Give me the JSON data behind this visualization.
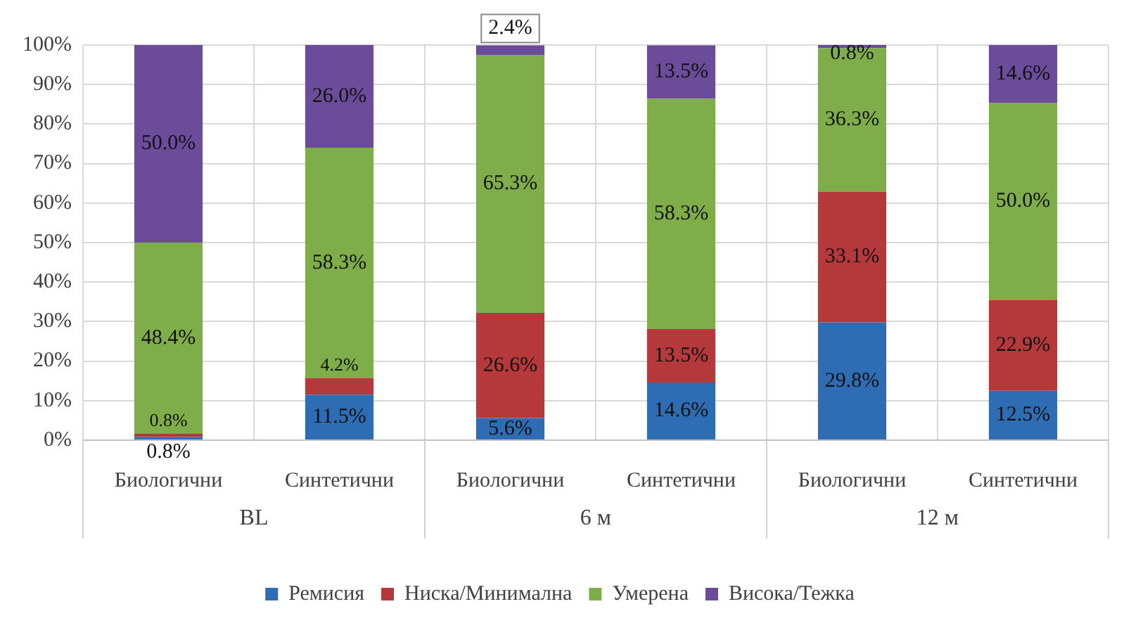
{
  "chart_data": {
    "type": "bar",
    "stacked": true,
    "categories": [
      "Биологични",
      "Синтетични",
      "Биологични",
      "Синтетични",
      "Биологични",
      "Синтетични"
    ],
    "annotations": [
      "BL",
      "6 м",
      "12 м"
    ],
    "series": [
      {
        "name": "Ремисия",
        "color": "#2e6db4",
        "values": [
          0.8,
          11.5,
          5.6,
          14.6,
          29.8,
          12.5
        ],
        "value_labels": [
          "0.8%",
          "11.5%",
          "5.6%",
          "14.6%",
          "29.8%",
          "12.5%"
        ]
      },
      {
        "name": "Ниска/Минимална",
        "color": "#b5393b",
        "values": [
          0.8,
          4.2,
          26.6,
          13.5,
          33.1,
          22.9
        ],
        "value_labels": [
          "0.8%",
          "4.2%",
          "26.6%",
          "13.5%",
          "33.1%",
          "22.9%"
        ]
      },
      {
        "name": "Умерена",
        "color": "#7fad4a",
        "values": [
          48.4,
          58.3,
          65.3,
          58.3,
          36.3,
          50.0
        ],
        "value_labels": [
          "48.4%",
          "58.3%",
          "65.3%",
          "58.3%",
          "36.3%",
          "50.0%"
        ]
      },
      {
        "name": "Висока/Тежка",
        "color": "#6b4c9a",
        "values": [
          50.0,
          26.0,
          2.4,
          13.5,
          0.8,
          14.6
        ],
        "value_labels": [
          "50.0%",
          "26.0%",
          "2.4%",
          "13.5%",
          "0.8%",
          "14.6%"
        ]
      }
    ],
    "ylim": [
      0,
      100
    ],
    "yticks": [
      {
        "value": 0,
        "label": "0%"
      },
      {
        "value": 10,
        "label": "10%"
      },
      {
        "value": 20,
        "label": "20%"
      },
      {
        "value": 30,
        "label": "30%"
      },
      {
        "value": 40,
        "label": "40%"
      },
      {
        "value": 50,
        "label": "50%"
      },
      {
        "value": 60,
        "label": "60%"
      },
      {
        "value": 70,
        "label": "70%"
      },
      {
        "value": 80,
        "label": "80%"
      },
      {
        "value": 90,
        "label": "90%"
      },
      {
        "value": 100,
        "label": "100%"
      }
    ],
    "grid": true,
    "legend": "bottom"
  }
}
